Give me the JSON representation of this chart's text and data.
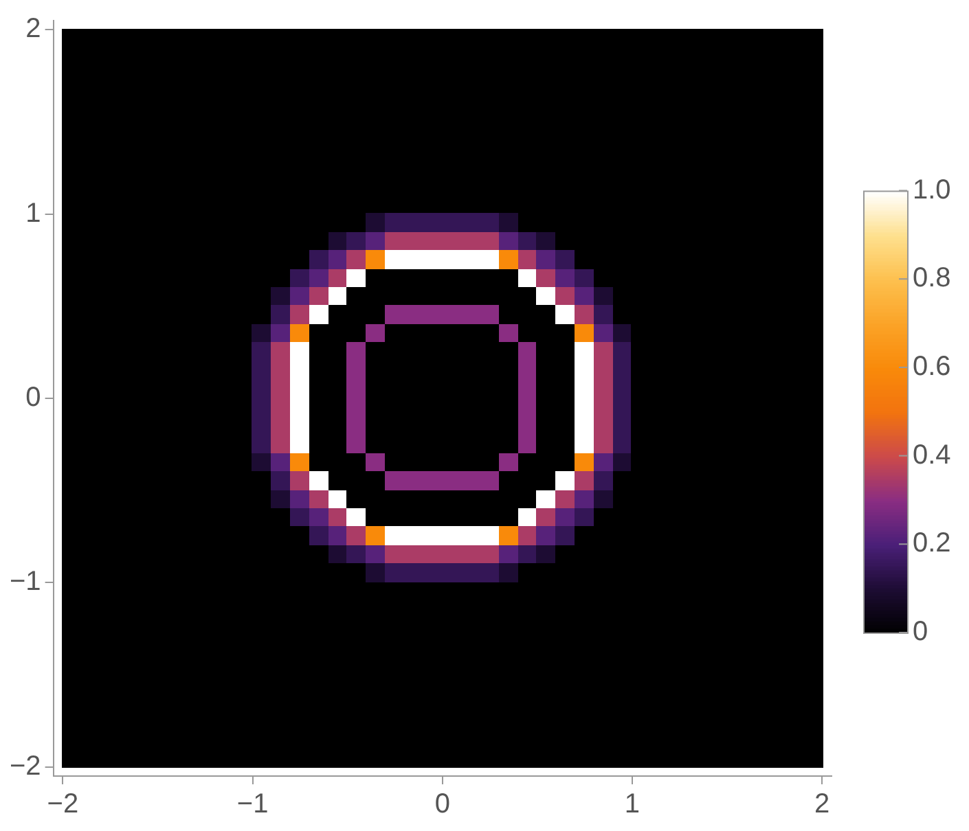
{
  "chart_data": {
    "type": "heatmap",
    "x": [
      -1.95,
      -1.85,
      -1.75,
      -1.65,
      -1.55,
      -1.45,
      -1.35,
      -1.25,
      -1.15,
      -1.05,
      -0.95,
      -0.85,
      -0.75,
      -0.65,
      -0.55,
      -0.45,
      -0.35,
      -0.25,
      -0.15,
      -0.05,
      0.05,
      0.15,
      0.25,
      0.35,
      0.45,
      0.55,
      0.65,
      0.75,
      0.85,
      0.95,
      1.05,
      1.15,
      1.25,
      1.35,
      1.45,
      1.55,
      1.65,
      1.75,
      1.85,
      1.95
    ],
    "y": [
      1.95,
      1.85,
      1.75,
      1.65,
      1.55,
      1.45,
      1.35,
      1.25,
      1.15,
      1.05,
      0.95,
      0.85,
      0.75,
      0.65,
      0.55,
      0.45,
      0.35,
      0.25,
      0.15,
      0.05,
      -0.05,
      -0.15,
      -0.25,
      -0.35,
      -0.45,
      -0.55,
      -0.65,
      -0.75,
      -0.85,
      -0.95,
      -1.05,
      -1.15,
      -1.25,
      -1.35,
      -1.45,
      -1.55,
      -1.65,
      -1.75,
      -1.85,
      -1.95
    ],
    "cells": [
      [
        0,
        0,
        0,
        0,
        0,
        0,
        0,
        0,
        0,
        0,
        0,
        0,
        0,
        0,
        0,
        0,
        0,
        0,
        0,
        0,
        0,
        0,
        0,
        0,
        0,
        0,
        0,
        0,
        0,
        0,
        0,
        0,
        0,
        0,
        0,
        0,
        0,
        0,
        0,
        0
      ],
      [
        0,
        0,
        0,
        0,
        0,
        0,
        0,
        0,
        0,
        0,
        0,
        0,
        0,
        0,
        0,
        0,
        0,
        0,
        0,
        0,
        0,
        0,
        0,
        0,
        0,
        0,
        0,
        0,
        0,
        0,
        0,
        0,
        0,
        0,
        0,
        0,
        0,
        0,
        0,
        0
      ],
      [
        0,
        0,
        0,
        0,
        0,
        0,
        0,
        0,
        0,
        0,
        0,
        0,
        0,
        0,
        0,
        0,
        0,
        0,
        0,
        0,
        0,
        0,
        0,
        0,
        0,
        0,
        0,
        0,
        0,
        0,
        0,
        0,
        0,
        0,
        0,
        0,
        0,
        0,
        0,
        0
      ],
      [
        0,
        0,
        0,
        0,
        0,
        0,
        0,
        0,
        0,
        0,
        0,
        0,
        0,
        0,
        0,
        0,
        0,
        0,
        0,
        0,
        0,
        0,
        0,
        0,
        0,
        0,
        0,
        0,
        0,
        0,
        0,
        0,
        0,
        0,
        0,
        0,
        0,
        0,
        0,
        0
      ],
      [
        0,
        0,
        0,
        0,
        0,
        0,
        0,
        0,
        0,
        0,
        0,
        0,
        0,
        0,
        0,
        0,
        0,
        0,
        0,
        0,
        0,
        0,
        0,
        0,
        0,
        0,
        0,
        0,
        0,
        0,
        0,
        0,
        0,
        0,
        0,
        0,
        0,
        0,
        0,
        0
      ],
      [
        0,
        0,
        0,
        0,
        0,
        0,
        0,
        0,
        0,
        0,
        0,
        0,
        0,
        0,
        0,
        0,
        0,
        0,
        0,
        0,
        0,
        0,
        0,
        0,
        0,
        0,
        0,
        0,
        0,
        0,
        0,
        0,
        0,
        0,
        0,
        0,
        0,
        0,
        0,
        0
      ],
      [
        0,
        0,
        0,
        0,
        0,
        0,
        0,
        0,
        0,
        0,
        0,
        0,
        0,
        0,
        0,
        0,
        0,
        0,
        0,
        0,
        0,
        0,
        0,
        0,
        0,
        0,
        0,
        0,
        0,
        0,
        0,
        0,
        0,
        0,
        0,
        0,
        0,
        0,
        0,
        0
      ],
      [
        0,
        0,
        0,
        0,
        0,
        0,
        0,
        0,
        0,
        0,
        0,
        0,
        0,
        0,
        0,
        0,
        0,
        0,
        0,
        0,
        0,
        0,
        0,
        0,
        0,
        0,
        0,
        0,
        0,
        0,
        0,
        0,
        0,
        0,
        0,
        0,
        0,
        0,
        0,
        0
      ],
      [
        0,
        0,
        0,
        0,
        0,
        0,
        0,
        0,
        0,
        0,
        0,
        0,
        0,
        0,
        0,
        0,
        0,
        0,
        0,
        0,
        0,
        0,
        0,
        0,
        0,
        0,
        0,
        0,
        0,
        0,
        0,
        0,
        0,
        0,
        0,
        0,
        0,
        0,
        0,
        0
      ],
      [
        0,
        0,
        0,
        0,
        0,
        0,
        0,
        0,
        0,
        0,
        0,
        0,
        0,
        0,
        0,
        0,
        0,
        0,
        0,
        0,
        0,
        0,
        0,
        0,
        0,
        0,
        0,
        0,
        0,
        0,
        0,
        0,
        0,
        0,
        0,
        0,
        0,
        0,
        0,
        0
      ],
      [
        0,
        0,
        0,
        0,
        0,
        0,
        0,
        0,
        0,
        0,
        0,
        0,
        0,
        0,
        0,
        0,
        0.1,
        0.15,
        0.15,
        0.15,
        0.15,
        0.15,
        0.15,
        0.1,
        0,
        0,
        0,
        0,
        0,
        0,
        0,
        0,
        0,
        0,
        0,
        0,
        0,
        0,
        0,
        0
      ],
      [
        0,
        0,
        0,
        0,
        0,
        0,
        0,
        0,
        0,
        0,
        0,
        0,
        0,
        0,
        0.1,
        0.15,
        0.22,
        0.35,
        0.35,
        0.35,
        0.35,
        0.35,
        0.35,
        0.22,
        0.15,
        0.1,
        0,
        0,
        0,
        0,
        0,
        0,
        0,
        0,
        0,
        0,
        0,
        0,
        0,
        0
      ],
      [
        0,
        0,
        0,
        0,
        0,
        0,
        0,
        0,
        0,
        0,
        0,
        0,
        0,
        0.15,
        0.22,
        0.35,
        0.6,
        1,
        1,
        1,
        1,
        1,
        1,
        0.6,
        0.35,
        0.22,
        0.15,
        0,
        0,
        0,
        0,
        0,
        0,
        0,
        0,
        0,
        0,
        0,
        0,
        0
      ],
      [
        0,
        0,
        0,
        0,
        0,
        0,
        0,
        0,
        0,
        0,
        0,
        0,
        0.15,
        0.22,
        0.35,
        1,
        0,
        0,
        0,
        0,
        0,
        0,
        0,
        0,
        1,
        0.35,
        0.22,
        0.15,
        0,
        0,
        0,
        0,
        0,
        0,
        0,
        0,
        0,
        0,
        0,
        0
      ],
      [
        0,
        0,
        0,
        0,
        0,
        0,
        0,
        0,
        0,
        0,
        0,
        0.1,
        0.22,
        0.35,
        1,
        0,
        0,
        0,
        0,
        0,
        0,
        0,
        0,
        0,
        0,
        1,
        0.35,
        0.22,
        0.1,
        0,
        0,
        0,
        0,
        0,
        0,
        0,
        0,
        0,
        0,
        0
      ],
      [
        0,
        0,
        0,
        0,
        0,
        0,
        0,
        0,
        0,
        0,
        0,
        0.15,
        0.35,
        1,
        0,
        0,
        0,
        0.3,
        0.3,
        0.3,
        0.3,
        0.3,
        0.3,
        0,
        0,
        0,
        1,
        0.35,
        0.15,
        0,
        0,
        0,
        0,
        0,
        0,
        0,
        0,
        0,
        0,
        0
      ],
      [
        0,
        0,
        0,
        0,
        0,
        0,
        0,
        0,
        0,
        0,
        0.1,
        0.22,
        0.6,
        0,
        0,
        0,
        0.3,
        0,
        0,
        0,
        0,
        0,
        0,
        0.3,
        0,
        0,
        0,
        0.6,
        0.22,
        0.1,
        0,
        0,
        0,
        0,
        0,
        0,
        0,
        0,
        0,
        0
      ],
      [
        0,
        0,
        0,
        0,
        0,
        0,
        0,
        0,
        0,
        0,
        0.15,
        0.35,
        1,
        0,
        0,
        0.3,
        0,
        0,
        0,
        0,
        0,
        0,
        0,
        0,
        0.3,
        0,
        0,
        1,
        0.35,
        0.15,
        0,
        0,
        0,
        0,
        0,
        0,
        0,
        0,
        0,
        0
      ],
      [
        0,
        0,
        0,
        0,
        0,
        0,
        0,
        0,
        0,
        0,
        0.15,
        0.35,
        1,
        0,
        0,
        0.3,
        0,
        0,
        0,
        0,
        0,
        0,
        0,
        0,
        0.3,
        0,
        0,
        1,
        0.35,
        0.15,
        0,
        0,
        0,
        0,
        0,
        0,
        0,
        0,
        0,
        0
      ],
      [
        0,
        0,
        0,
        0,
        0,
        0,
        0,
        0,
        0,
        0,
        0.15,
        0.35,
        1,
        0,
        0,
        0.3,
        0,
        0,
        0,
        0,
        0,
        0,
        0,
        0,
        0.3,
        0,
        0,
        1,
        0.35,
        0.15,
        0,
        0,
        0,
        0,
        0,
        0,
        0,
        0,
        0,
        0
      ],
      [
        0,
        0,
        0,
        0,
        0,
        0,
        0,
        0,
        0,
        0,
        0.15,
        0.35,
        1,
        0,
        0,
        0.3,
        0,
        0,
        0,
        0,
        0,
        0,
        0,
        0,
        0.3,
        0,
        0,
        1,
        0.35,
        0.15,
        0,
        0,
        0,
        0,
        0,
        0,
        0,
        0,
        0,
        0
      ],
      [
        0,
        0,
        0,
        0,
        0,
        0,
        0,
        0,
        0,
        0,
        0.15,
        0.35,
        1,
        0,
        0,
        0.3,
        0,
        0,
        0,
        0,
        0,
        0,
        0,
        0,
        0.3,
        0,
        0,
        1,
        0.35,
        0.15,
        0,
        0,
        0,
        0,
        0,
        0,
        0,
        0,
        0,
        0
      ],
      [
        0,
        0,
        0,
        0,
        0,
        0,
        0,
        0,
        0,
        0,
        0.15,
        0.35,
        1,
        0,
        0,
        0.3,
        0,
        0,
        0,
        0,
        0,
        0,
        0,
        0,
        0.3,
        0,
        0,
        1,
        0.35,
        0.15,
        0,
        0,
        0,
        0,
        0,
        0,
        0,
        0,
        0,
        0
      ],
      [
        0,
        0,
        0,
        0,
        0,
        0,
        0,
        0,
        0,
        0,
        0.1,
        0.22,
        0.6,
        0,
        0,
        0,
        0.3,
        0,
        0,
        0,
        0,
        0,
        0,
        0.3,
        0,
        0,
        0,
        0.6,
        0.22,
        0.1,
        0,
        0,
        0,
        0,
        0,
        0,
        0,
        0,
        0,
        0
      ],
      [
        0,
        0,
        0,
        0,
        0,
        0,
        0,
        0,
        0,
        0,
        0,
        0.15,
        0.35,
        1,
        0,
        0,
        0,
        0.3,
        0.3,
        0.3,
        0.3,
        0.3,
        0.3,
        0,
        0,
        0,
        1,
        0.35,
        0.15,
        0,
        0,
        0,
        0,
        0,
        0,
        0,
        0,
        0,
        0,
        0
      ],
      [
        0,
        0,
        0,
        0,
        0,
        0,
        0,
        0,
        0,
        0,
        0,
        0.1,
        0.22,
        0.35,
        1,
        0,
        0,
        0,
        0,
        0,
        0,
        0,
        0,
        0,
        0,
        1,
        0.35,
        0.22,
        0.1,
        0,
        0,
        0,
        0,
        0,
        0,
        0,
        0,
        0,
        0,
        0
      ],
      [
        0,
        0,
        0,
        0,
        0,
        0,
        0,
        0,
        0,
        0,
        0,
        0,
        0.15,
        0.22,
        0.35,
        1,
        0,
        0,
        0,
        0,
        0,
        0,
        0,
        0,
        1,
        0.35,
        0.22,
        0.15,
        0,
        0,
        0,
        0,
        0,
        0,
        0,
        0,
        0,
        0,
        0,
        0
      ],
      [
        0,
        0,
        0,
        0,
        0,
        0,
        0,
        0,
        0,
        0,
        0,
        0,
        0,
        0.15,
        0.22,
        0.35,
        0.6,
        1,
        1,
        1,
        1,
        1,
        1,
        0.6,
        0.35,
        0.22,
        0.15,
        0,
        0,
        0,
        0,
        0,
        0,
        0,
        0,
        0,
        0,
        0,
        0,
        0
      ],
      [
        0,
        0,
        0,
        0,
        0,
        0,
        0,
        0,
        0,
        0,
        0,
        0,
        0,
        0,
        0.1,
        0.15,
        0.22,
        0.35,
        0.35,
        0.35,
        0.35,
        0.35,
        0.35,
        0.22,
        0.15,
        0.1,
        0,
        0,
        0,
        0,
        0,
        0,
        0,
        0,
        0,
        0,
        0,
        0,
        0,
        0
      ],
      [
        0,
        0,
        0,
        0,
        0,
        0,
        0,
        0,
        0,
        0,
        0,
        0,
        0,
        0,
        0,
        0,
        0.1,
        0.15,
        0.15,
        0.15,
        0.15,
        0.15,
        0.15,
        0.1,
        0,
        0,
        0,
        0,
        0,
        0,
        0,
        0,
        0,
        0,
        0,
        0,
        0,
        0,
        0,
        0
      ],
      [
        0,
        0,
        0,
        0,
        0,
        0,
        0,
        0,
        0,
        0,
        0,
        0,
        0,
        0,
        0,
        0,
        0,
        0,
        0,
        0,
        0,
        0,
        0,
        0,
        0,
        0,
        0,
        0,
        0,
        0,
        0,
        0,
        0,
        0,
        0,
        0,
        0,
        0,
        0,
        0
      ],
      [
        0,
        0,
        0,
        0,
        0,
        0,
        0,
        0,
        0,
        0,
        0,
        0,
        0,
        0,
        0,
        0,
        0,
        0,
        0,
        0,
        0,
        0,
        0,
        0,
        0,
        0,
        0,
        0,
        0,
        0,
        0,
        0,
        0,
        0,
        0,
        0,
        0,
        0,
        0,
        0
      ],
      [
        0,
        0,
        0,
        0,
        0,
        0,
        0,
        0,
        0,
        0,
        0,
        0,
        0,
        0,
        0,
        0,
        0,
        0,
        0,
        0,
        0,
        0,
        0,
        0,
        0,
        0,
        0,
        0,
        0,
        0,
        0,
        0,
        0,
        0,
        0,
        0,
        0,
        0,
        0,
        0
      ],
      [
        0,
        0,
        0,
        0,
        0,
        0,
        0,
        0,
        0,
        0,
        0,
        0,
        0,
        0,
        0,
        0,
        0,
        0,
        0,
        0,
        0,
        0,
        0,
        0,
        0,
        0,
        0,
        0,
        0,
        0,
        0,
        0,
        0,
        0,
        0,
        0,
        0,
        0,
        0,
        0
      ],
      [
        0,
        0,
        0,
        0,
        0,
        0,
        0,
        0,
        0,
        0,
        0,
        0,
        0,
        0,
        0,
        0,
        0,
        0,
        0,
        0,
        0,
        0,
        0,
        0,
        0,
        0,
        0,
        0,
        0,
        0,
        0,
        0,
        0,
        0,
        0,
        0,
        0,
        0,
        0,
        0
      ],
      [
        0,
        0,
        0,
        0,
        0,
        0,
        0,
        0,
        0,
        0,
        0,
        0,
        0,
        0,
        0,
        0,
        0,
        0,
        0,
        0,
        0,
        0,
        0,
        0,
        0,
        0,
        0,
        0,
        0,
        0,
        0,
        0,
        0,
        0,
        0,
        0,
        0,
        0,
        0,
        0
      ],
      [
        0,
        0,
        0,
        0,
        0,
        0,
        0,
        0,
        0,
        0,
        0,
        0,
        0,
        0,
        0,
        0,
        0,
        0,
        0,
        0,
        0,
        0,
        0,
        0,
        0,
        0,
        0,
        0,
        0,
        0,
        0,
        0,
        0,
        0,
        0,
        0,
        0,
        0,
        0,
        0
      ],
      [
        0,
        0,
        0,
        0,
        0,
        0,
        0,
        0,
        0,
        0,
        0,
        0,
        0,
        0,
        0,
        0,
        0,
        0,
        0,
        0,
        0,
        0,
        0,
        0,
        0,
        0,
        0,
        0,
        0,
        0,
        0,
        0,
        0,
        0,
        0,
        0,
        0,
        0,
        0,
        0
      ],
      [
        0,
        0,
        0,
        0,
        0,
        0,
        0,
        0,
        0,
        0,
        0,
        0,
        0,
        0,
        0,
        0,
        0,
        0,
        0,
        0,
        0,
        0,
        0,
        0,
        0,
        0,
        0,
        0,
        0,
        0,
        0,
        0,
        0,
        0,
        0,
        0,
        0,
        0,
        0,
        0
      ],
      [
        0,
        0,
        0,
        0,
        0,
        0,
        0,
        0,
        0,
        0,
        0,
        0,
        0,
        0,
        0,
        0,
        0,
        0,
        0,
        0,
        0,
        0,
        0,
        0,
        0,
        0,
        0,
        0,
        0,
        0,
        0,
        0,
        0,
        0,
        0,
        0,
        0,
        0,
        0,
        0
      ]
    ],
    "xlim": [
      -2.05,
      2.05
    ],
    "ylim": [
      -2.05,
      2.05
    ],
    "xticks": [
      {
        "value": -2,
        "label": "−2"
      },
      {
        "value": -1,
        "label": "−1"
      },
      0,
      1,
      2
    ],
    "yticks": [
      {
        "value": -2,
        "label": "−2"
      },
      {
        "value": -1,
        "label": "−1"
      },
      0,
      1,
      2
    ],
    "clim": [
      0,
      1
    ],
    "cticks": [
      0,
      0.2,
      0.4,
      0.6,
      0.8,
      {
        "value": 1,
        "label": "1.0"
      }
    ]
  }
}
